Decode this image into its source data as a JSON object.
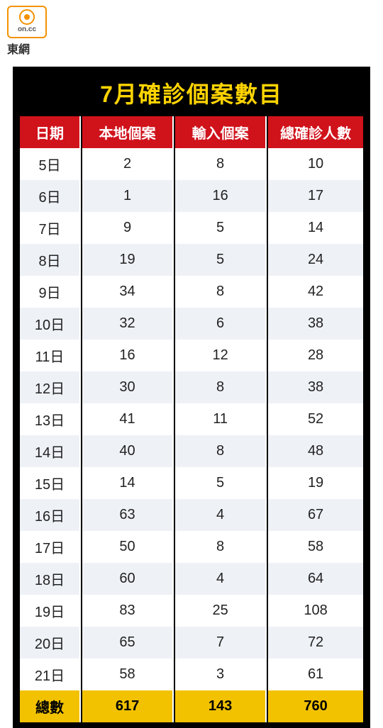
{
  "logo": {
    "text_small": "on.cc",
    "label": "東網"
  },
  "table": {
    "title": "7月確診個案數目",
    "columns": [
      "日期",
      "本地個案",
      "輸入個案",
      "總確診人數"
    ],
    "rows": [
      [
        "5日",
        "2",
        "8",
        "10"
      ],
      [
        "6日",
        "1",
        "16",
        "17"
      ],
      [
        "7日",
        "9",
        "5",
        "14"
      ],
      [
        "8日",
        "19",
        "5",
        "24"
      ],
      [
        "9日",
        "34",
        "8",
        "42"
      ],
      [
        "10日",
        "32",
        "6",
        "38"
      ],
      [
        "11日",
        "16",
        "12",
        "28"
      ],
      [
        "12日",
        "30",
        "8",
        "38"
      ],
      [
        "13日",
        "41",
        "11",
        "52"
      ],
      [
        "14日",
        "40",
        "8",
        "48"
      ],
      [
        "15日",
        "14",
        "5",
        "19"
      ],
      [
        "16日",
        "63",
        "4",
        "67"
      ],
      [
        "17日",
        "50",
        "8",
        "58"
      ],
      [
        "18日",
        "60",
        "4",
        "64"
      ],
      [
        "19日",
        "83",
        "25",
        "108"
      ],
      [
        "20日",
        "65",
        "7",
        "72"
      ],
      [
        "21日",
        "58",
        "3",
        "61"
      ]
    ],
    "total": [
      "總數",
      "617",
      "143",
      "760"
    ],
    "colors": {
      "title_bg": "#000000",
      "title_fg": "#ffd400",
      "header_bg": "#d0121b",
      "header_fg": "#ffffff",
      "row_odd": "#ffffff",
      "row_even": "#eef1f6",
      "total_bg": "#f2c200",
      "logo_orange": "#f39200"
    }
  }
}
